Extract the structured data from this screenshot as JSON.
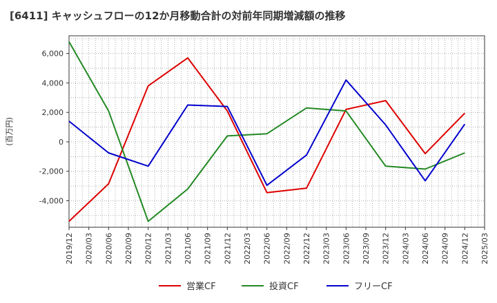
{
  "chart_data": {
    "type": "line",
    "title": "[6411]  キャッシュフローの12か月移動合計の対前年同期増減額の推移",
    "ylabel": "(百万円)",
    "xlabel": "",
    "ylim": [
      -5800,
      7200
    ],
    "yticks": [
      -4000,
      -2000,
      0,
      2000,
      4000,
      6000
    ],
    "ytick_labels": [
      "-4,000",
      "-2,000",
      "0",
      "2,000",
      "4,000",
      "6,000"
    ],
    "categories": [
      "2019/12",
      "2020/03",
      "2020/06",
      "2020/09",
      "2020/12",
      "2021/03",
      "2021/06",
      "2021/09",
      "2021/12",
      "2022/03",
      "2022/06",
      "2022/09",
      "2022/12",
      "2023/03",
      "2023/06",
      "2023/09",
      "2023/12",
      "2024/03",
      "2024/06",
      "2024/09",
      "2024/12",
      "2025/03"
    ],
    "series": [
      {
        "name": "営業CF",
        "color": "#dd0000",
        "values": [
          -5400,
          null,
          -2850,
          null,
          3800,
          null,
          5700,
          null,
          2100,
          null,
          -3450,
          null,
          -3150,
          null,
          2200,
          null,
          2800,
          null,
          -800,
          null,
          1950,
          null
        ]
      },
      {
        "name": "投資CF",
        "color": "#228822",
        "values": [
          6800,
          null,
          2100,
          null,
          -5400,
          null,
          -3200,
          null,
          400,
          null,
          550,
          null,
          2300,
          null,
          2100,
          null,
          -1650,
          null,
          -1850,
          null,
          -750,
          null
        ]
      },
      {
        "name": "フリーCF",
        "color": "#0000cc",
        "values": [
          1400,
          null,
          -750,
          null,
          -1650,
          null,
          2500,
          null,
          2400,
          null,
          -2950,
          null,
          -900,
          null,
          4200,
          null,
          1150,
          null,
          -2650,
          null,
          1200,
          null
        ]
      }
    ]
  }
}
